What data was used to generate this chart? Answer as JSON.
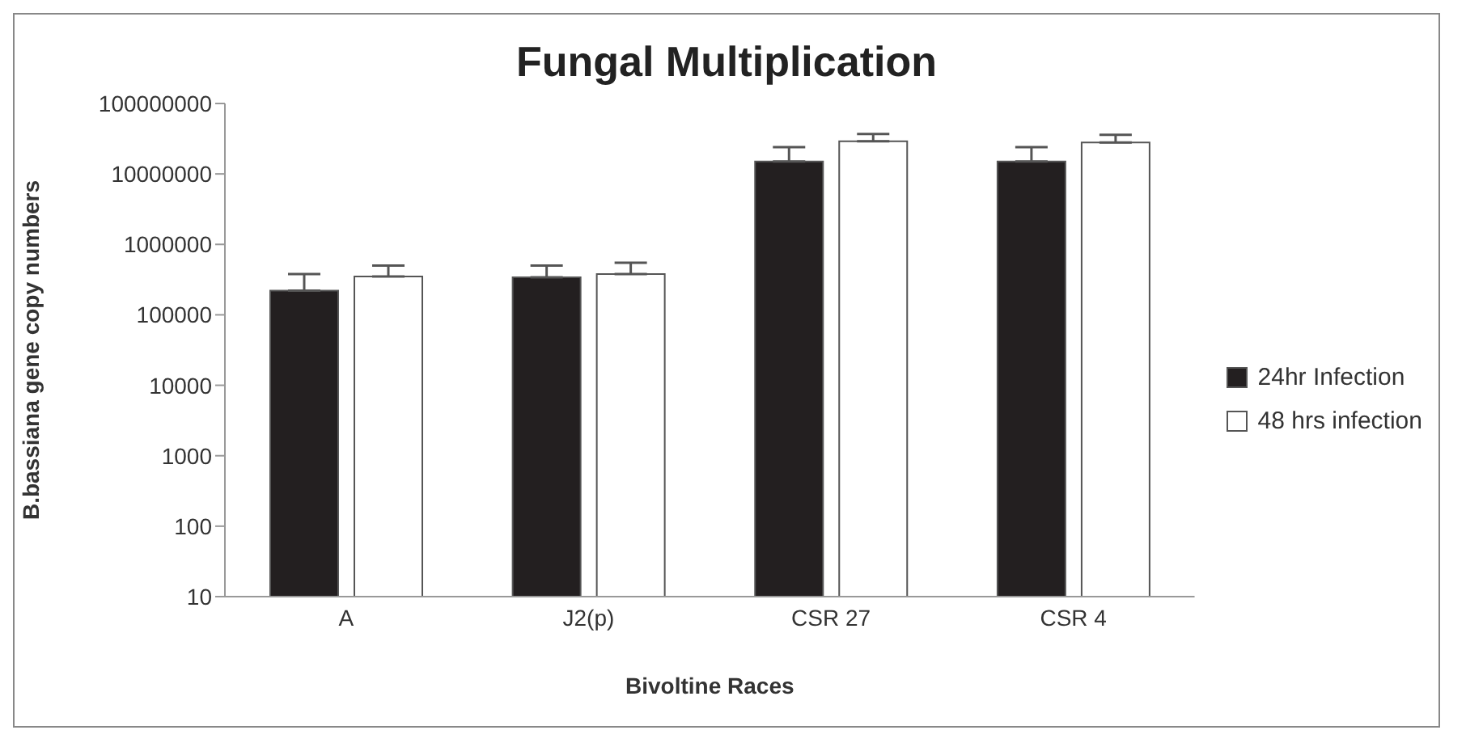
{
  "chart_data": {
    "type": "bar",
    "title": "Fungal Multiplication",
    "xlabel": "Bivoltine Races",
    "ylabel": "B.bassiana gene copy numbers",
    "categories": [
      "A",
      "J2(p)",
      "CSR 27",
      "CSR 4"
    ],
    "series": [
      {
        "name": "24hr Infection",
        "color": "#231f20",
        "values": [
          220000,
          340000,
          15000000,
          15000000
        ],
        "errors": [
          [
            220000,
            380000
          ],
          [
            340000,
            500000
          ],
          [
            15000000,
            24000000
          ],
          [
            15000000,
            24000000
          ]
        ]
      },
      {
        "name": "48 hrs infection",
        "color": "#ffffff",
        "values": [
          350000,
          380000,
          29000000,
          28000000
        ],
        "errors": [
          [
            350000,
            500000
          ],
          [
            380000,
            550000
          ],
          [
            29000000,
            37000000
          ],
          [
            28000000,
            36000000
          ]
        ]
      }
    ],
    "log": "y",
    "ylim": [
      10,
      100000000
    ],
    "yticks": [
      10,
      100,
      1000,
      10000,
      100000,
      1000000,
      10000000,
      100000000
    ],
    "grid": false,
    "legend": "right"
  }
}
